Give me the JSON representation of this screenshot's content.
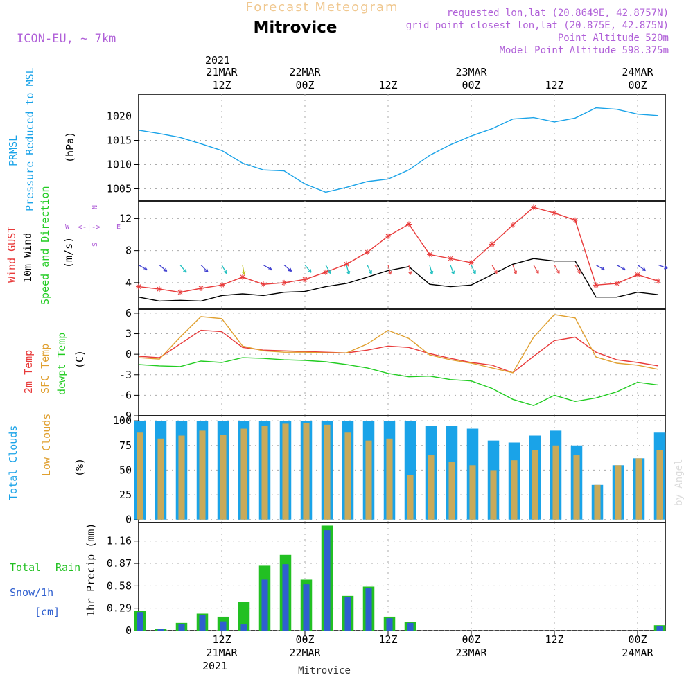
{
  "header": {
    "product": "Forecast Meteogram",
    "station": "Mitrovice",
    "model": "ICON-EU, ~ 7km",
    "requested": "requested lon,lat (20.8649E, 42.8757N)",
    "gridpoint": "grid point closest lon,lat (20.875E, 42.875N)",
    "point_alt": "Point Altitude 520m",
    "model_alt": "Model Point Altitude 598.375m",
    "footer": "Mitrovice",
    "credit": "by Angel"
  },
  "time_axis": {
    "top_year": "2021",
    "bottom_year": "2021",
    "ticks": [
      {
        "t": 12,
        "top1": "21MAR",
        "top2": "12Z",
        "bot1": "12Z",
        "bot2": "21MAR"
      },
      {
        "t": 24,
        "top1": "22MAR",
        "top2": "00Z",
        "bot1": "00Z",
        "bot2": "22MAR"
      },
      {
        "t": 36,
        "top1": "",
        "top2": "12Z",
        "bot1": "12Z",
        "bot2": ""
      },
      {
        "t": 48,
        "top1": "23MAR",
        "top2": "00Z",
        "bot1": "00Z",
        "bot2": "23MAR"
      },
      {
        "t": 60,
        "top1": "",
        "top2": "12Z",
        "bot1": "12Z",
        "bot2": ""
      },
      {
        "t": 72,
        "top1": "24MAR",
        "top2": "00Z",
        "bot1": "00Z",
        "bot2": "24MAR"
      }
    ]
  },
  "panel_labels": {
    "pressure": [
      "PRMSL",
      "Pressure Reduced to MSL",
      "(hPa)"
    ],
    "wind": [
      "Wind GUST",
      "10m Wind",
      "Speed and Direction",
      "(m/s)"
    ],
    "compass": {
      "n": "N",
      "s": "S",
      "w": "W",
      "e": "E"
    },
    "temp": [
      "2m Temp",
      "SFC Temp",
      "dewpt Temp",
      "(C)"
    ],
    "clouds": [
      "Total Clouds",
      "Low Clouds",
      "(%)"
    ],
    "precip": [
      "Total",
      "Rain",
      "Snow/1h",
      "[cm]",
      "1hr Precip (mm)"
    ]
  },
  "colors": {
    "pressure": "#1aa3e8",
    "gust": "#e83a3a",
    "wind": "#000000",
    "temp2m": "#e83a3a",
    "sfc": "#e0a030",
    "dewpt": "#22cc22",
    "total_cloud": "#1aa3e8",
    "low_cloud": "#c8aa5a",
    "rain": "#22c022",
    "snow": "#2f5fcf",
    "label_purple": "#b060d8",
    "title_orange": "#f0c890"
  },
  "chart_data": [
    {
      "type": "line",
      "title": "PRMSL Pressure Reduced to MSL",
      "ylabel": "(hPa)",
      "ylim": [
        1002.5,
        1024.5
      ],
      "yticks": [
        1005,
        1010,
        1015,
        1020
      ],
      "x": [
        0,
        3,
        6,
        9,
        12,
        15,
        18,
        21,
        24,
        27,
        30,
        33,
        36,
        39,
        42,
        45,
        48,
        51,
        54,
        57,
        60,
        63,
        66,
        69,
        72,
        75
      ],
      "series": [
        {
          "values": [
            1017.1,
            1016.4,
            1015.6,
            1014.3,
            1012.9,
            1010.3,
            1008.9,
            1008.7,
            1006.0,
            1004.3,
            1005.3,
            1006.5,
            1007.0,
            1008.9,
            1011.9,
            1014.1,
            1015.9,
            1017.4,
            1019.4,
            1019.7,
            1018.8,
            1019.6,
            1021.7,
            1021.4,
            1020.4,
            1020.1
          ]
        }
      ]
    },
    {
      "type": "line",
      "title": "Wind GUST / 10m Wind Speed and Direction",
      "ylabel": "(m/s)",
      "ylim": [
        0.7,
        14.2
      ],
      "yticks": [
        4,
        8,
        12
      ],
      "x": [
        0,
        3,
        6,
        9,
        12,
        15,
        18,
        21,
        24,
        27,
        30,
        33,
        36,
        39,
        42,
        45,
        48,
        51,
        54,
        57,
        60,
        63,
        66,
        69,
        72,
        75
      ],
      "series": [
        {
          "name": "Wind GUST",
          "values": [
            3.5,
            3.2,
            2.8,
            3.3,
            3.7,
            4.7,
            3.8,
            4.0,
            4.4,
            5.3,
            6.3,
            7.8,
            9.8,
            11.3,
            7.5,
            7.0,
            6.5,
            8.8,
            11.2,
            13.4,
            12.7,
            11.8,
            3.7,
            3.9,
            5.0,
            4.2
          ]
        },
        {
          "name": "10m Wind",
          "values": [
            2.2,
            1.7,
            1.8,
            1.7,
            2.4,
            2.6,
            2.4,
            2.8,
            2.9,
            3.5,
            3.9,
            4.7,
            5.5,
            6.0,
            3.8,
            3.5,
            3.7,
            5.0,
            6.3,
            7.0,
            6.7,
            6.7,
            2.2,
            2.2,
            2.8,
            2.5
          ]
        }
      ],
      "barbs": {
        "x": [
          0,
          3,
          6,
          9,
          12,
          15,
          18,
          21,
          24,
          27,
          30,
          33,
          36,
          39,
          42,
          45,
          48,
          51,
          54,
          57,
          60,
          63,
          66,
          69,
          72,
          75
        ],
        "from_deg": [
          300,
          310,
          320,
          315,
          330,
          350,
          300,
          310,
          320,
          330,
          345,
          335,
          345,
          350,
          345,
          340,
          335,
          330,
          340,
          330,
          330,
          330,
          300,
          300,
          305,
          290
        ]
      }
    },
    {
      "type": "line",
      "title": "2m Temp / SFC Temp / dewpt Temp",
      "ylabel": "(C)",
      "ylim": [
        -9,
        6.6
      ],
      "yticks": [
        -9,
        -6,
        -3,
        0,
        3,
        6
      ],
      "x": [
        0,
        3,
        6,
        9,
        12,
        15,
        18,
        21,
        24,
        27,
        30,
        33,
        36,
        39,
        42,
        45,
        48,
        51,
        54,
        57,
        60,
        63,
        66,
        69,
        72,
        75
      ],
      "series": [
        {
          "name": "2m Temp",
          "values": [
            -0.3,
            -0.5,
            1.5,
            3.5,
            3.3,
            1.0,
            0.6,
            0.5,
            0.4,
            0.3,
            0.2,
            0.6,
            1.2,
            1.0,
            0.1,
            -0.6,
            -1.2,
            -1.6,
            -2.7,
            -0.3,
            2.0,
            2.5,
            0.3,
            -0.8,
            -1.2,
            -1.7
          ]
        },
        {
          "name": "SFC Temp",
          "values": [
            -0.5,
            -0.7,
            2.5,
            5.5,
            5.2,
            1.2,
            0.5,
            0.3,
            0.3,
            0.2,
            0.2,
            1.5,
            3.5,
            2.3,
            -0.1,
            -0.8,
            -1.3,
            -2.0,
            -2.7,
            2.5,
            5.8,
            5.3,
            -0.4,
            -1.3,
            -1.6,
            -2.2
          ]
        },
        {
          "name": "dewpt Temp",
          "values": [
            -1.5,
            -1.7,
            -1.8,
            -1.0,
            -1.2,
            -0.5,
            -0.6,
            -0.8,
            -0.9,
            -1.1,
            -1.5,
            -2.0,
            -2.8,
            -3.3,
            -3.2,
            -3.7,
            -3.9,
            -5.0,
            -6.6,
            -7.5,
            -6.0,
            -6.9,
            -6.4,
            -5.5,
            -4.1,
            -4.5
          ]
        }
      ]
    },
    {
      "type": "bar",
      "title": "Total Clouds / Low Clouds",
      "ylabel": "(%)",
      "ylim": [
        -3,
        105
      ],
      "yticks": [
        0,
        25,
        50,
        75,
        100
      ],
      "x": [
        0,
        3,
        6,
        9,
        12,
        15,
        18,
        21,
        24,
        27,
        30,
        33,
        36,
        39,
        42,
        45,
        48,
        51,
        54,
        57,
        60,
        63,
        66,
        69,
        72,
        75
      ],
      "series": [
        {
          "name": "Total Clouds",
          "values": [
            100,
            100,
            100,
            100,
            100,
            100,
            100,
            100,
            100,
            100,
            100,
            100,
            100,
            100,
            95,
            95,
            92,
            80,
            78,
            85,
            90,
            75,
            35,
            55,
            62,
            88
          ]
        },
        {
          "name": "Low Clouds",
          "values": [
            88,
            82,
            85,
            90,
            86,
            92,
            95,
            97,
            98,
            96,
            88,
            80,
            82,
            45,
            65,
            58,
            55,
            50,
            60,
            70,
            75,
            65,
            35,
            55,
            62,
            70
          ]
        }
      ]
    },
    {
      "type": "bar",
      "title": "Total Rain / Snow 1h",
      "ylabel": "1hr Precip (mm)",
      "ylim": [
        0,
        1.4
      ],
      "yticks": [
        0,
        0.29,
        0.58,
        0.87,
        1.16
      ],
      "x": [
        0,
        3,
        6,
        9,
        12,
        15,
        18,
        21,
        24,
        27,
        30,
        33,
        36,
        39,
        42,
        45,
        48,
        51,
        54,
        57,
        60,
        63,
        66,
        69,
        72,
        75
      ],
      "series": [
        {
          "name": "Total Rain",
          "values": [
            0.26,
            0.02,
            0.1,
            0.22,
            0.18,
            0.37,
            0.84,
            0.98,
            0.66,
            1.36,
            0.45,
            0.57,
            0.18,
            0.11,
            0,
            0,
            0,
            0,
            0,
            0,
            0,
            0,
            0,
            0,
            0,
            0.07
          ]
        },
        {
          "name": "Snow/1h",
          "values": [
            0.24,
            0.02,
            0.09,
            0.2,
            0.12,
            0.08,
            0.66,
            0.86,
            0.6,
            1.3,
            0.44,
            0.55,
            0.16,
            0.1,
            0,
            0,
            0,
            0,
            0,
            0,
            0,
            0,
            0,
            0,
            0,
            0.06
          ]
        }
      ]
    }
  ]
}
